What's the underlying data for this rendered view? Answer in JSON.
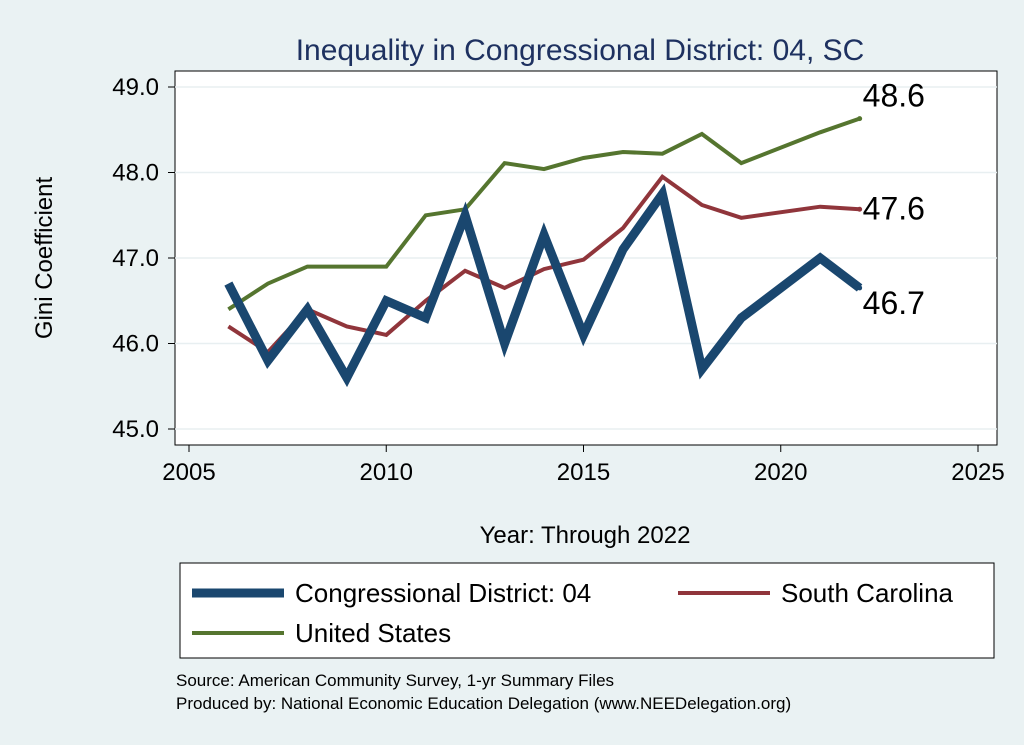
{
  "chart_data": {
    "type": "line",
    "title": "Inequality in Congressional District:  04, SC",
    "xlabel": "Year: Through 2022",
    "ylabel": "Gini Coefficient",
    "xlim": [
      2005,
      2025
    ],
    "ylim": [
      45.0,
      49.0
    ],
    "x_ticks": [
      2005,
      2010,
      2015,
      2020,
      2025
    ],
    "y_ticks": [
      45.0,
      46.0,
      47.0,
      48.0,
      49.0
    ],
    "y_tick_labels": [
      "45.0",
      "46.0",
      "47.0",
      "48.0",
      "49.0"
    ],
    "grid": "horizontal",
    "legend_position": "bottom",
    "series": [
      {
        "name": "Congressional District:  04",
        "color": "#1a476f",
        "x": [
          2006,
          2007,
          2008,
          2009,
          2010,
          2011,
          2012,
          2013,
          2014,
          2015,
          2016,
          2017,
          2018,
          2019,
          2021,
          2022
        ],
        "values": [
          46.7,
          45.8,
          46.4,
          45.6,
          46.5,
          46.3,
          47.5,
          46.0,
          47.27,
          46.1,
          47.1,
          47.75,
          45.7,
          46.3,
          47.0,
          46.65
        ],
        "end_label": "46.7"
      },
      {
        "name": "South Carolina",
        "color": "#90353b",
        "x": [
          2006,
          2007,
          2008,
          2009,
          2010,
          2011,
          2012,
          2013,
          2014,
          2015,
          2016,
          2017,
          2018,
          2019,
          2021,
          2022
        ],
        "values": [
          46.2,
          45.9,
          46.4,
          46.2,
          46.1,
          46.5,
          46.85,
          46.65,
          46.87,
          46.98,
          47.35,
          47.95,
          47.62,
          47.47,
          47.6,
          47.57
        ],
        "end_label": "47.6"
      },
      {
        "name": "United States",
        "color": "#55752f",
        "x": [
          2006,
          2007,
          2008,
          2009,
          2010,
          2011,
          2012,
          2013,
          2014,
          2015,
          2016,
          2017,
          2018,
          2019,
          2021,
          2022
        ],
        "values": [
          46.4,
          46.7,
          46.9,
          46.9,
          46.9,
          47.5,
          47.57,
          48.11,
          48.04,
          48.17,
          48.24,
          48.22,
          48.45,
          48.11,
          48.47,
          48.63
        ],
        "end_label": "48.6"
      }
    ],
    "source_lines": [
      "Source: American Community Survey, 1-yr Summary Files",
      "Produced by: National Economic Education Delegation (www.NEEDelegation.org)"
    ]
  }
}
